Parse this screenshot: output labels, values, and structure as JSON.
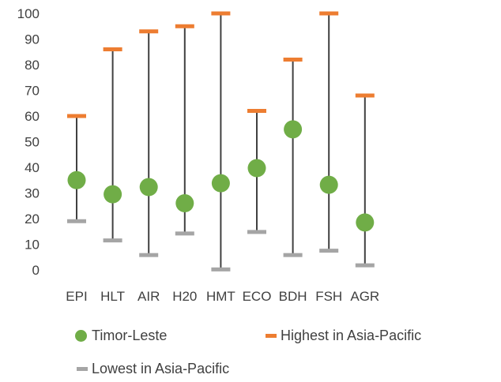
{
  "chart_data": {
    "type": "scatter",
    "categories": [
      "EPI",
      "HLT",
      "AIR",
      "H20",
      "HMT",
      "ECO",
      "BDH",
      "FSH",
      "AGR"
    ],
    "ylim": [
      0,
      100
    ],
    "yticks": [
      0,
      10,
      20,
      30,
      40,
      50,
      60,
      70,
      80,
      90,
      100
    ],
    "grid": false,
    "legend_position": "bottom",
    "series": [
      {
        "name": "Timor-Leste",
        "color": "#70ad47",
        "marker": "circle",
        "values": [
          35,
          29.5,
          32.3,
          26,
          33.8,
          39.7,
          54.8,
          33.2,
          18.5
        ]
      },
      {
        "name": "Highest in Asia-Pacific",
        "color": "#ed7d31",
        "marker": "dash",
        "values": [
          60,
          86,
          93,
          95,
          100,
          62,
          82,
          100,
          68
        ]
      },
      {
        "name": "Lowest in Asia-Pacific",
        "color": "#a5a5a5",
        "marker": "dash",
        "values": [
          19,
          11.5,
          5.8,
          14.2,
          0.2,
          14.8,
          5.8,
          7.5,
          1.8
        ]
      }
    ],
    "range_line_color": "#404040"
  }
}
